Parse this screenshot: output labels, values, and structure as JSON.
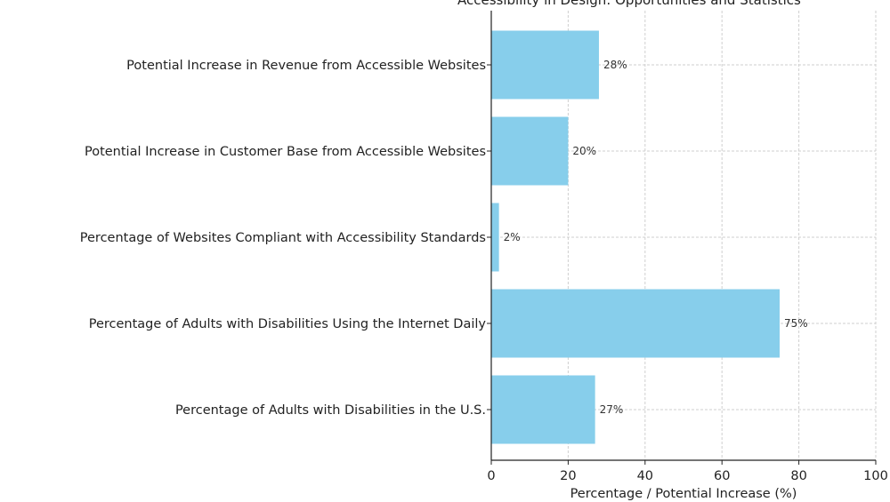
{
  "chart_data": {
    "type": "bar",
    "orientation": "horizontal",
    "title": "Accessibility in Design: Opportunities and Statistics",
    "xlabel": "Percentage / Potential Increase (%)",
    "ylabel": "",
    "xlim": [
      0,
      100
    ],
    "xticks": [
      0,
      20,
      40,
      60,
      80,
      100
    ],
    "grid": true,
    "bar_color": "#87ceeb",
    "categories": [
      "Potential Increase in Revenue from Accessible Websites",
      "Potential Increase in Customer Base from Accessible Websites",
      "Percentage of Websites Compliant with Accessibility Standards",
      "Percentage of Adults with Disabilities Using the Internet Daily",
      "Percentage of Adults with Disabilities in the U.S."
    ],
    "values": [
      28,
      20,
      2,
      75,
      27
    ],
    "value_labels": [
      "28%",
      "20%",
      "2%",
      "75%",
      "27%"
    ]
  }
}
